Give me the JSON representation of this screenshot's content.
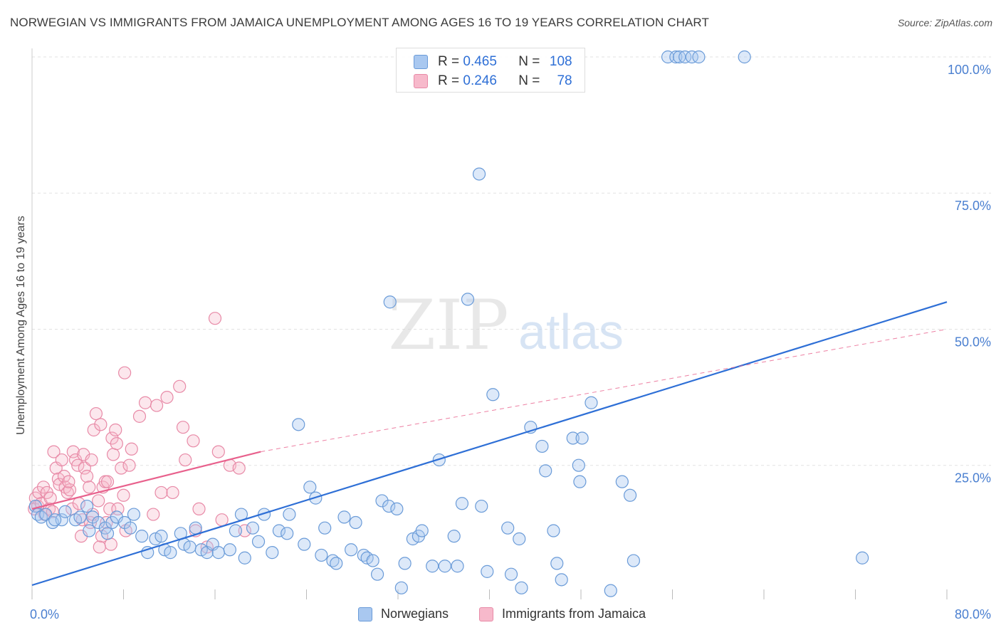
{
  "title": "NORWEGIAN VS IMMIGRANTS FROM JAMAICA UNEMPLOYMENT AMONG AGES 16 TO 19 YEARS CORRELATION CHART",
  "source": "Source: ZipAtlas.com",
  "watermark": {
    "zip": "ZIP",
    "atlas": "atlas"
  },
  "colors": {
    "norwegians_fill": "#a9c8f0",
    "norwegians_stroke": "#6a9bd8",
    "norwegians_line": "#2e6fd6",
    "jamaica_fill": "#f7b9cb",
    "jamaica_stroke": "#e88aa7",
    "jamaica_line": "#e8608c",
    "tick_text": "#4a7fd0",
    "grid": "#e2e2e2"
  },
  "legend_top": {
    "rows": [
      {
        "r_label": "R =",
        "r_value": "0.465",
        "n_label": "N =",
        "n_value": "108"
      },
      {
        "r_label": "R =",
        "r_value": "0.246",
        "n_label": "N =",
        "n_value": "78"
      }
    ]
  },
  "legend_bottom": [
    "Norwegians",
    "Immigrants from Jamaica"
  ],
  "chart_data": {
    "type": "scatter",
    "title": "NORWEGIAN VS IMMIGRANTS FROM JAMAICA UNEMPLOYMENT AMONG AGES 16 TO 19 YEARS CORRELATION CHART",
    "xlabel": "",
    "ylabel": "Unemployment Among Ages 16 to 19 years",
    "xlim": [
      0,
      80
    ],
    "ylim": [
      0,
      105
    ],
    "x_tick_labels": [
      "0.0%",
      "80.0%"
    ],
    "y_ticks": [
      25,
      50,
      75,
      100
    ],
    "y_tick_labels": [
      "25.0%",
      "50.0%",
      "75.0%",
      "100.0%"
    ],
    "grid": "horizontal dashed",
    "legend_position": "top-center",
    "series": [
      {
        "name": "Norwegians",
        "r": 0.465,
        "n": 108,
        "trend": {
          "x": [
            0,
            80
          ],
          "y": [
            3,
            55
          ],
          "style": "solid"
        },
        "points": [
          [
            0.3,
            17.5
          ],
          [
            0.5,
            16
          ],
          [
            0.8,
            15.5
          ],
          [
            1.2,
            16
          ],
          [
            1.8,
            14.5
          ],
          [
            2.6,
            15
          ],
          [
            2.9,
            16.5
          ],
          [
            3.8,
            15
          ],
          [
            4.2,
            15.5
          ],
          [
            4.8,
            17.5
          ],
          [
            5.3,
            15.5
          ],
          [
            5.8,
            14.5
          ],
          [
            6.4,
            13.5
          ],
          [
            6.6,
            12.5
          ],
          [
            7.0,
            14.5
          ],
          [
            7.4,
            15.5
          ],
          [
            8.1,
            14.5
          ],
          [
            8.6,
            13.5
          ],
          [
            8.9,
            16
          ],
          [
            9.6,
            12
          ],
          [
            10.1,
            9
          ],
          [
            10.8,
            11.5
          ],
          [
            11.3,
            12
          ],
          [
            11.6,
            9.5
          ],
          [
            12.1,
            9
          ],
          [
            13.0,
            12.5
          ],
          [
            13.3,
            10.5
          ],
          [
            13.8,
            10
          ],
          [
            14.3,
            13.5
          ],
          [
            14.8,
            9.5
          ],
          [
            15.3,
            9
          ],
          [
            15.8,
            10.5
          ],
          [
            16.3,
            9
          ],
          [
            17.3,
            9.5
          ],
          [
            17.8,
            13
          ],
          [
            18.3,
            16
          ],
          [
            18.6,
            8
          ],
          [
            19.3,
            13.5
          ],
          [
            19.8,
            11
          ],
          [
            20.3,
            16
          ],
          [
            21.0,
            9
          ],
          [
            21.6,
            13
          ],
          [
            22.3,
            12.5
          ],
          [
            22.5,
            16
          ],
          [
            23.3,
            32.5
          ],
          [
            23.8,
            10.5
          ],
          [
            24.3,
            21
          ],
          [
            24.8,
            19
          ],
          [
            25.3,
            8.5
          ],
          [
            25.6,
            13.5
          ],
          [
            26.3,
            7.5
          ],
          [
            26.6,
            7
          ],
          [
            27.3,
            15.5
          ],
          [
            27.9,
            9.5
          ],
          [
            28.3,
            14.5
          ],
          [
            29.0,
            8.5
          ],
          [
            29.3,
            8
          ],
          [
            29.8,
            7.5
          ],
          [
            30.2,
            5
          ],
          [
            30.6,
            18.5
          ],
          [
            31.2,
            17.5
          ],
          [
            31.9,
            17
          ],
          [
            31.3,
            55
          ],
          [
            32.3,
            2.5
          ],
          [
            32.6,
            7
          ],
          [
            33.3,
            11.5
          ],
          [
            33.8,
            12
          ],
          [
            34.1,
            13
          ],
          [
            35.0,
            6.5
          ],
          [
            35.6,
            26
          ],
          [
            36.1,
            6.5
          ],
          [
            36.9,
            12
          ],
          [
            37.2,
            6.5
          ],
          [
            37.6,
            18
          ],
          [
            38.1,
            55.5
          ],
          [
            39.3,
            17.5
          ],
          [
            39.8,
            5.5
          ],
          [
            39.1,
            78.5
          ],
          [
            40.3,
            38
          ],
          [
            41.6,
            13.5
          ],
          [
            41.9,
            5
          ],
          [
            42.6,
            11.5
          ],
          [
            42.8,
            2.5
          ],
          [
            43.6,
            32
          ],
          [
            44.6,
            28.5
          ],
          [
            44.9,
            24
          ],
          [
            45.6,
            13
          ],
          [
            45.9,
            7
          ],
          [
            46.3,
            4
          ],
          [
            47.3,
            30
          ],
          [
            47.9,
            22
          ],
          [
            47.8,
            25
          ],
          [
            48.1,
            30
          ],
          [
            48.9,
            36.5
          ],
          [
            50.6,
            2
          ],
          [
            51.6,
            22
          ],
          [
            52.3,
            19.5
          ],
          [
            52.6,
            7.5
          ],
          [
            55.6,
            100
          ],
          [
            56.3,
            100
          ],
          [
            56.6,
            100
          ],
          [
            57.1,
            100
          ],
          [
            57.7,
            100
          ],
          [
            58.3,
            100
          ],
          [
            62.3,
            100
          ],
          [
            72.6,
            8
          ],
          [
            2.0,
            15
          ],
          [
            5.0,
            13
          ]
        ]
      },
      {
        "name": "Immigrants from Jamaica",
        "r": 0.246,
        "n": 78,
        "trend": {
          "x": [
            0,
            20
          ],
          "y": [
            17,
            27.5
          ],
          "style": "solid",
          "extended_to_x": 80,
          "extended_y": 50,
          "extended_style": "dashed"
        },
        "points": [
          [
            0.2,
            17
          ],
          [
            0.3,
            19
          ],
          [
            0.5,
            17.5
          ],
          [
            0.6,
            20
          ],
          [
            0.8,
            18
          ],
          [
            1.0,
            21
          ],
          [
            1.1,
            16
          ],
          [
            1.3,
            20
          ],
          [
            1.5,
            17
          ],
          [
            1.8,
            16.5
          ],
          [
            1.9,
            27.5
          ],
          [
            2.1,
            24.5
          ],
          [
            2.3,
            22.5
          ],
          [
            2.4,
            21.5
          ],
          [
            2.6,
            26
          ],
          [
            2.8,
            23
          ],
          [
            2.9,
            21
          ],
          [
            3.1,
            20
          ],
          [
            3.3,
            20.5
          ],
          [
            3.5,
            17
          ],
          [
            3.6,
            27.5
          ],
          [
            3.8,
            26
          ],
          [
            4.0,
            25
          ],
          [
            4.1,
            18
          ],
          [
            4.3,
            12
          ],
          [
            4.4,
            15
          ],
          [
            4.5,
            27
          ],
          [
            4.6,
            24.5
          ],
          [
            4.8,
            23
          ],
          [
            5.0,
            21
          ],
          [
            5.1,
            14.5
          ],
          [
            5.2,
            26
          ],
          [
            5.3,
            16
          ],
          [
            5.4,
            31.5
          ],
          [
            5.6,
            34.5
          ],
          [
            5.8,
            18.5
          ],
          [
            6.0,
            32.5
          ],
          [
            6.1,
            12
          ],
          [
            6.2,
            21
          ],
          [
            6.4,
            22
          ],
          [
            6.5,
            14.5
          ],
          [
            6.6,
            22
          ],
          [
            6.8,
            17
          ],
          [
            7.0,
            30
          ],
          [
            7.1,
            27
          ],
          [
            7.3,
            31.5
          ],
          [
            7.4,
            29
          ],
          [
            7.5,
            17
          ],
          [
            7.8,
            24.5
          ],
          [
            8.0,
            19.5
          ],
          [
            8.1,
            42
          ],
          [
            8.2,
            13
          ],
          [
            8.5,
            25
          ],
          [
            8.7,
            28
          ],
          [
            9.4,
            34
          ],
          [
            9.9,
            36.5
          ],
          [
            10.6,
            16
          ],
          [
            10.9,
            36
          ],
          [
            11.3,
            20
          ],
          [
            11.8,
            37.5
          ],
          [
            12.3,
            20
          ],
          [
            12.9,
            39.5
          ],
          [
            13.2,
            32
          ],
          [
            13.4,
            26
          ],
          [
            14.1,
            29.5
          ],
          [
            14.6,
            17
          ],
          [
            16.3,
            27.5
          ],
          [
            16.6,
            15
          ],
          [
            17.3,
            25
          ],
          [
            18.1,
            24.5
          ],
          [
            18.6,
            13
          ],
          [
            14.3,
            13
          ],
          [
            15.3,
            10
          ],
          [
            16.0,
            52
          ],
          [
            6.9,
            10.5
          ],
          [
            5.9,
            10
          ],
          [
            1.6,
            19
          ],
          [
            3.2,
            22
          ]
        ]
      }
    ]
  }
}
